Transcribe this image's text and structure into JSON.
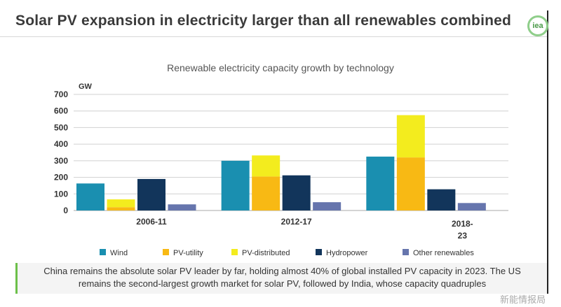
{
  "header": {
    "title": "Solar PV expansion in electricity larger than all renewables combined",
    "logo_text": "iea"
  },
  "chart_data": {
    "type": "bar",
    "title": "Renewable electricity capacity growth by technology",
    "ylabel": "GW",
    "ylim": [
      0,
      700
    ],
    "yticks": [
      0,
      100,
      200,
      300,
      400,
      500,
      600,
      700
    ],
    "grid": true,
    "legend_placement": "bottom",
    "categories": [
      "2006-11",
      "2012-17",
      "2018-23"
    ],
    "series": [
      {
        "name": "Wind",
        "color": "#1a8fb0",
        "values": [
          163,
          300,
          325
        ]
      },
      {
        "name": "PV-utility",
        "color": "#f8b914",
        "values": [
          20,
          205,
          320
        ],
        "stack": "pv"
      },
      {
        "name": "PV-distributed",
        "color": "#f3ec1e",
        "values": [
          47,
          127,
          255
        ],
        "stack": "pv"
      },
      {
        "name": "Hydropower",
        "color": "#12355b",
        "values": [
          190,
          212,
          128
        ]
      },
      {
        "name": "Other renewables",
        "color": "#6675ad",
        "values": [
          37,
          50,
          45
        ]
      }
    ]
  },
  "caption": {
    "line1": "China remains the absolute solar PV leader by far, holding almost 40% of global installed PV capacity in 2023. The US",
    "line2": "remains the second-largest growth market for solar PV, followed by India, whose capacity quadruples"
  },
  "watermark": "新能情报局"
}
